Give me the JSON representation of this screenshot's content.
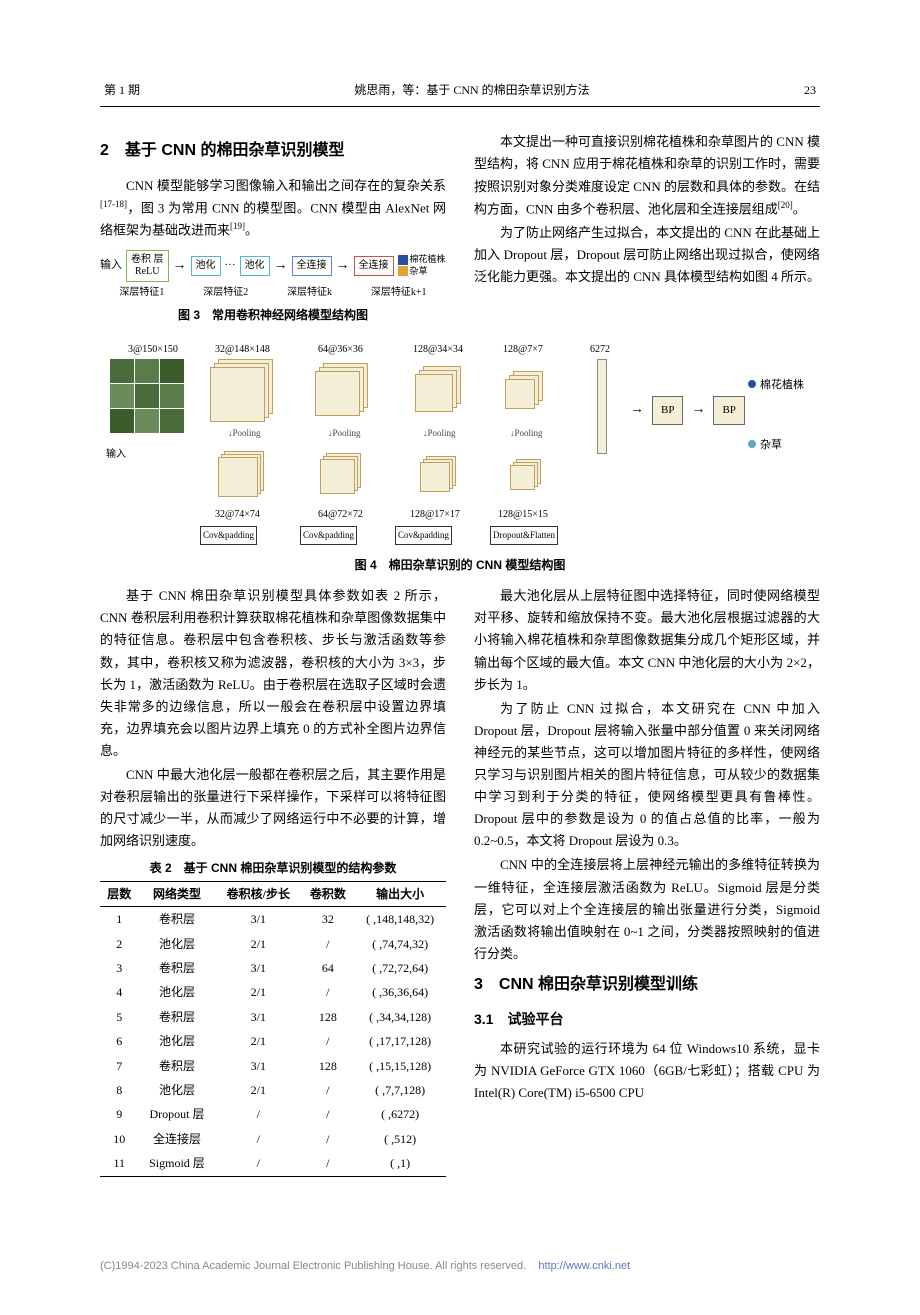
{
  "header": {
    "issue": "第 1 期",
    "running": "姚思雨，等：基于 CNN 的棉田杂草识别方法",
    "page": "23"
  },
  "sec2": {
    "title": "2　基于 CNN 的棉田杂草识别模型",
    "p1_a": "CNN 模型能够学习图像输入和输出之间存在的复杂关系",
    "cite1": "[17-18]",
    "p1_b": "，图 3 为常用 CNN 的模型图。CNN 模型由 AlexNet 网络框架为基础改进而来",
    "cite2": "[19]",
    "p1_c": "。"
  },
  "right_top": {
    "p1_a": "本文提出一种可直接识别棉花植株和杂草图片的 CNN 模型结构，将 CNN 应用于棉花植株和杂草的识别工作时，需要按照识别对象分类难度设定 CNN 的层数和具体的参数。在结构方面，CNN 由多个卷积层、池化层和全连接层组成",
    "cite1": "[20]",
    "p1_b": "。",
    "p2": "为了防止网络产生过拟合，本文提出的 CNN 在此基础上加入 Dropout 层，Dropout 层可防止网络出现过拟合，使网络泛化能力更强。本文提出的 CNN 具体模型结构如图 4 所示。"
  },
  "fig3": {
    "caption": "图 3　常用卷积神经网络模型结构图",
    "input": "输入",
    "conv": "卷积\n层",
    "relu": "ReLU",
    "pool": "池化",
    "fc": "全连接",
    "legend1": "棉花植株",
    "legend2": "杂草",
    "d1": "深层特征1",
    "d2": "深层特征2",
    "dk": "深层特征k",
    "dk1": "深层特征k+1",
    "colors": {
      "green": "#7fb850",
      "cyan": "#4fb8d4",
      "blue": "#5080d8",
      "red": "#c85050",
      "darkblue": "#2850a0",
      "orange": "#e8a030"
    }
  },
  "fig4": {
    "caption": "图 4　棉田杂草识别的 CNN 模型结构图",
    "input": "输入",
    "l1": "3@150×150",
    "l2": "32@148×148",
    "l3": "32@74×74",
    "l4": "64@36×36",
    "l5": "64@72×72",
    "l6": "128@34×34",
    "l7": "128@17×17",
    "l8": "128@7×7",
    "l9": "128@15×15",
    "fc": "6272",
    "bp": "BP",
    "out1": "棉花植株",
    "out2": "杂草",
    "pool": "Pooling",
    "cov": "Cov&padding",
    "drop": "Dropout&Flatten",
    "panel_fill": "#f5efd8",
    "panel_border": "#c0a060",
    "dot1": "#2850a0",
    "dot2": "#5ba8b8"
  },
  "para_after_fig4": {
    "left": {
      "p1": "基于 CNN 棉田杂草识别模型具体参数如表 2 所示，CNN 卷积层利用卷积计算获取棉花植株和杂草图像数据集中的特征信息。卷积层中包含卷积核、步长与激活函数等参数，其中，卷积核又称为滤波器，卷积核的大小为 3×3，步长为 1，激活函数为 ReLU。由于卷积层在选取子区域时会遗失非常多的边缘信息，所以一般会在卷积层中设置边界填充，边界填充会以图片边界上填充 0 的方式补全图片边界信息。",
      "p2": "CNN 中最大池化层一般都在卷积层之后，其主要作用是对卷积层输出的张量进行下采样操作，下采样可以将特征图的尺寸减少一半，从而减少了网络运行中不必要的计算，增加网络识别速度。"
    },
    "right": {
      "p1": "最大池化层从上层特征图中选择特征，同时使网络模型对平移、旋转和缩放保持不变。最大池化层根据过滤器的大小将输入棉花植株和杂草图像数据集分成几个矩形区域，并输出每个区域的最大值。本文 CNN 中池化层的大小为 2×2，步长为 1。",
      "p2": "为了防止 CNN 过拟合，本文研究在 CNN 中加入 Dropout 层，Dropout 层将输入张量中部分值置 0 来关闭网络神经元的某些节点，这可以增加图片特征的多样性，使网络只学习与识别图片相关的图片特征信息，可从较少的数据集中学习到利于分类的特征，使网络模型更具有鲁棒性。Dropout 层中的参数是设为 0 的值占总值的比率，一般为 0.2~0.5，本文将 Dropout 层设为 0.3。",
      "p3": "CNN 中的全连接层将上层神经元输出的多维特征转换为一维特征，全连接层激活函数为 ReLU。Sigmoid 层是分类层，它可以对上个全连接层的输出张量进行分类，Sigmoid 激活函数将输出值映射在 0~1 之间，分类器按照映射的值进行分类。"
    }
  },
  "table2": {
    "caption": "表 2　基于 CNN 棉田杂草识别模型的结构参数",
    "headers": [
      "层数",
      "网络类型",
      "卷积核/步长",
      "卷积数",
      "输出大小"
    ],
    "rows": [
      [
        "1",
        "卷积层",
        "3/1",
        "32",
        "( ,148,148,32)"
      ],
      [
        "2",
        "池化层",
        "2/1",
        "/",
        "( ,74,74,32)"
      ],
      [
        "3",
        "卷积层",
        "3/1",
        "64",
        "( ,72,72,64)"
      ],
      [
        "4",
        "池化层",
        "2/1",
        "/",
        "( ,36,36,64)"
      ],
      [
        "5",
        "卷积层",
        "3/1",
        "128",
        "( ,34,34,128)"
      ],
      [
        "6",
        "池化层",
        "2/1",
        "/",
        "( ,17,17,128)"
      ],
      [
        "7",
        "卷积层",
        "3/1",
        "128",
        "( ,15,15,128)"
      ],
      [
        "8",
        "池化层",
        "2/1",
        "/",
        "( ,7,7,128)"
      ],
      [
        "9",
        "Dropout 层",
        "/",
        "/",
        "( ,6272)"
      ],
      [
        "10",
        "全连接层",
        "/",
        "/",
        "( ,512)"
      ],
      [
        "11",
        "Sigmoid 层",
        "/",
        "/",
        "( ,1)"
      ]
    ]
  },
  "sec3": {
    "title": "3　CNN 棉田杂草识别模型训练",
    "sub1": "3.1　试验平台",
    "p1": "本研究试验的运行环境为 64 位 Windows10 系统，显卡为 NVIDIA GeForce GTX 1060（6GB/七彩虹）；搭载 CPU 为 Intel(R) Core(TM) i5-6500 CPU"
  },
  "footer": {
    "text": "(C)1994-2023 China Academic Journal Electronic Publishing House. All rights reserved.",
    "url": "http://www.cnki.net"
  }
}
